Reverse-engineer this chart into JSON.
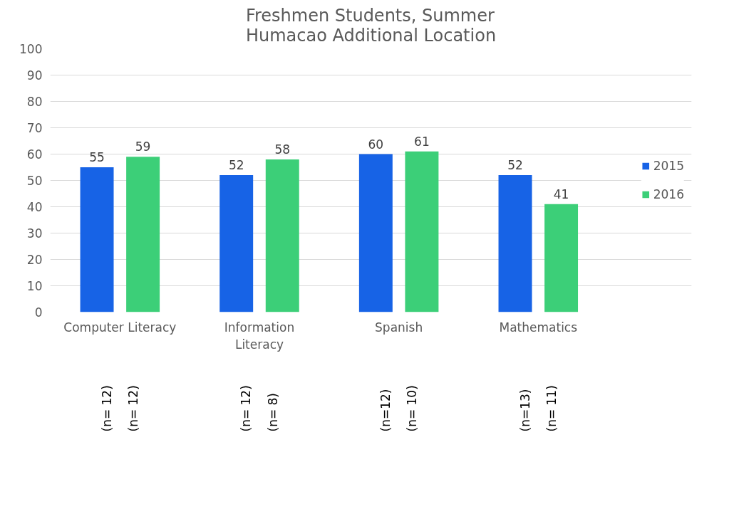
{
  "chart_data": {
    "type": "bar",
    "title": "Freshmen Students, Summer\nHumacao Additional Location",
    "categories": [
      "Computer Literacy",
      "Information Literacy",
      "Spanish",
      "Mathematics"
    ],
    "series": [
      {
        "name": "2015",
        "color": "#1763e6",
        "values": [
          55,
          52,
          60,
          52
        ]
      },
      {
        "name": "2016",
        "color": "#3ccf78",
        "values": [
          59,
          58,
          61,
          41
        ]
      }
    ],
    "ylim": [
      0,
      100
    ],
    "yticks": [
      0,
      10,
      20,
      30,
      40,
      50,
      60,
      70,
      80,
      90,
      100
    ],
    "grid": "y",
    "legend": "right",
    "data_labels": true,
    "annotations": [
      "(n= 12)",
      "(n= 12)",
      "(n= 12)",
      "(n= 8)",
      "(n=12)",
      "(n= 10)",
      "(n=13)",
      "(n= 11)"
    ]
  }
}
